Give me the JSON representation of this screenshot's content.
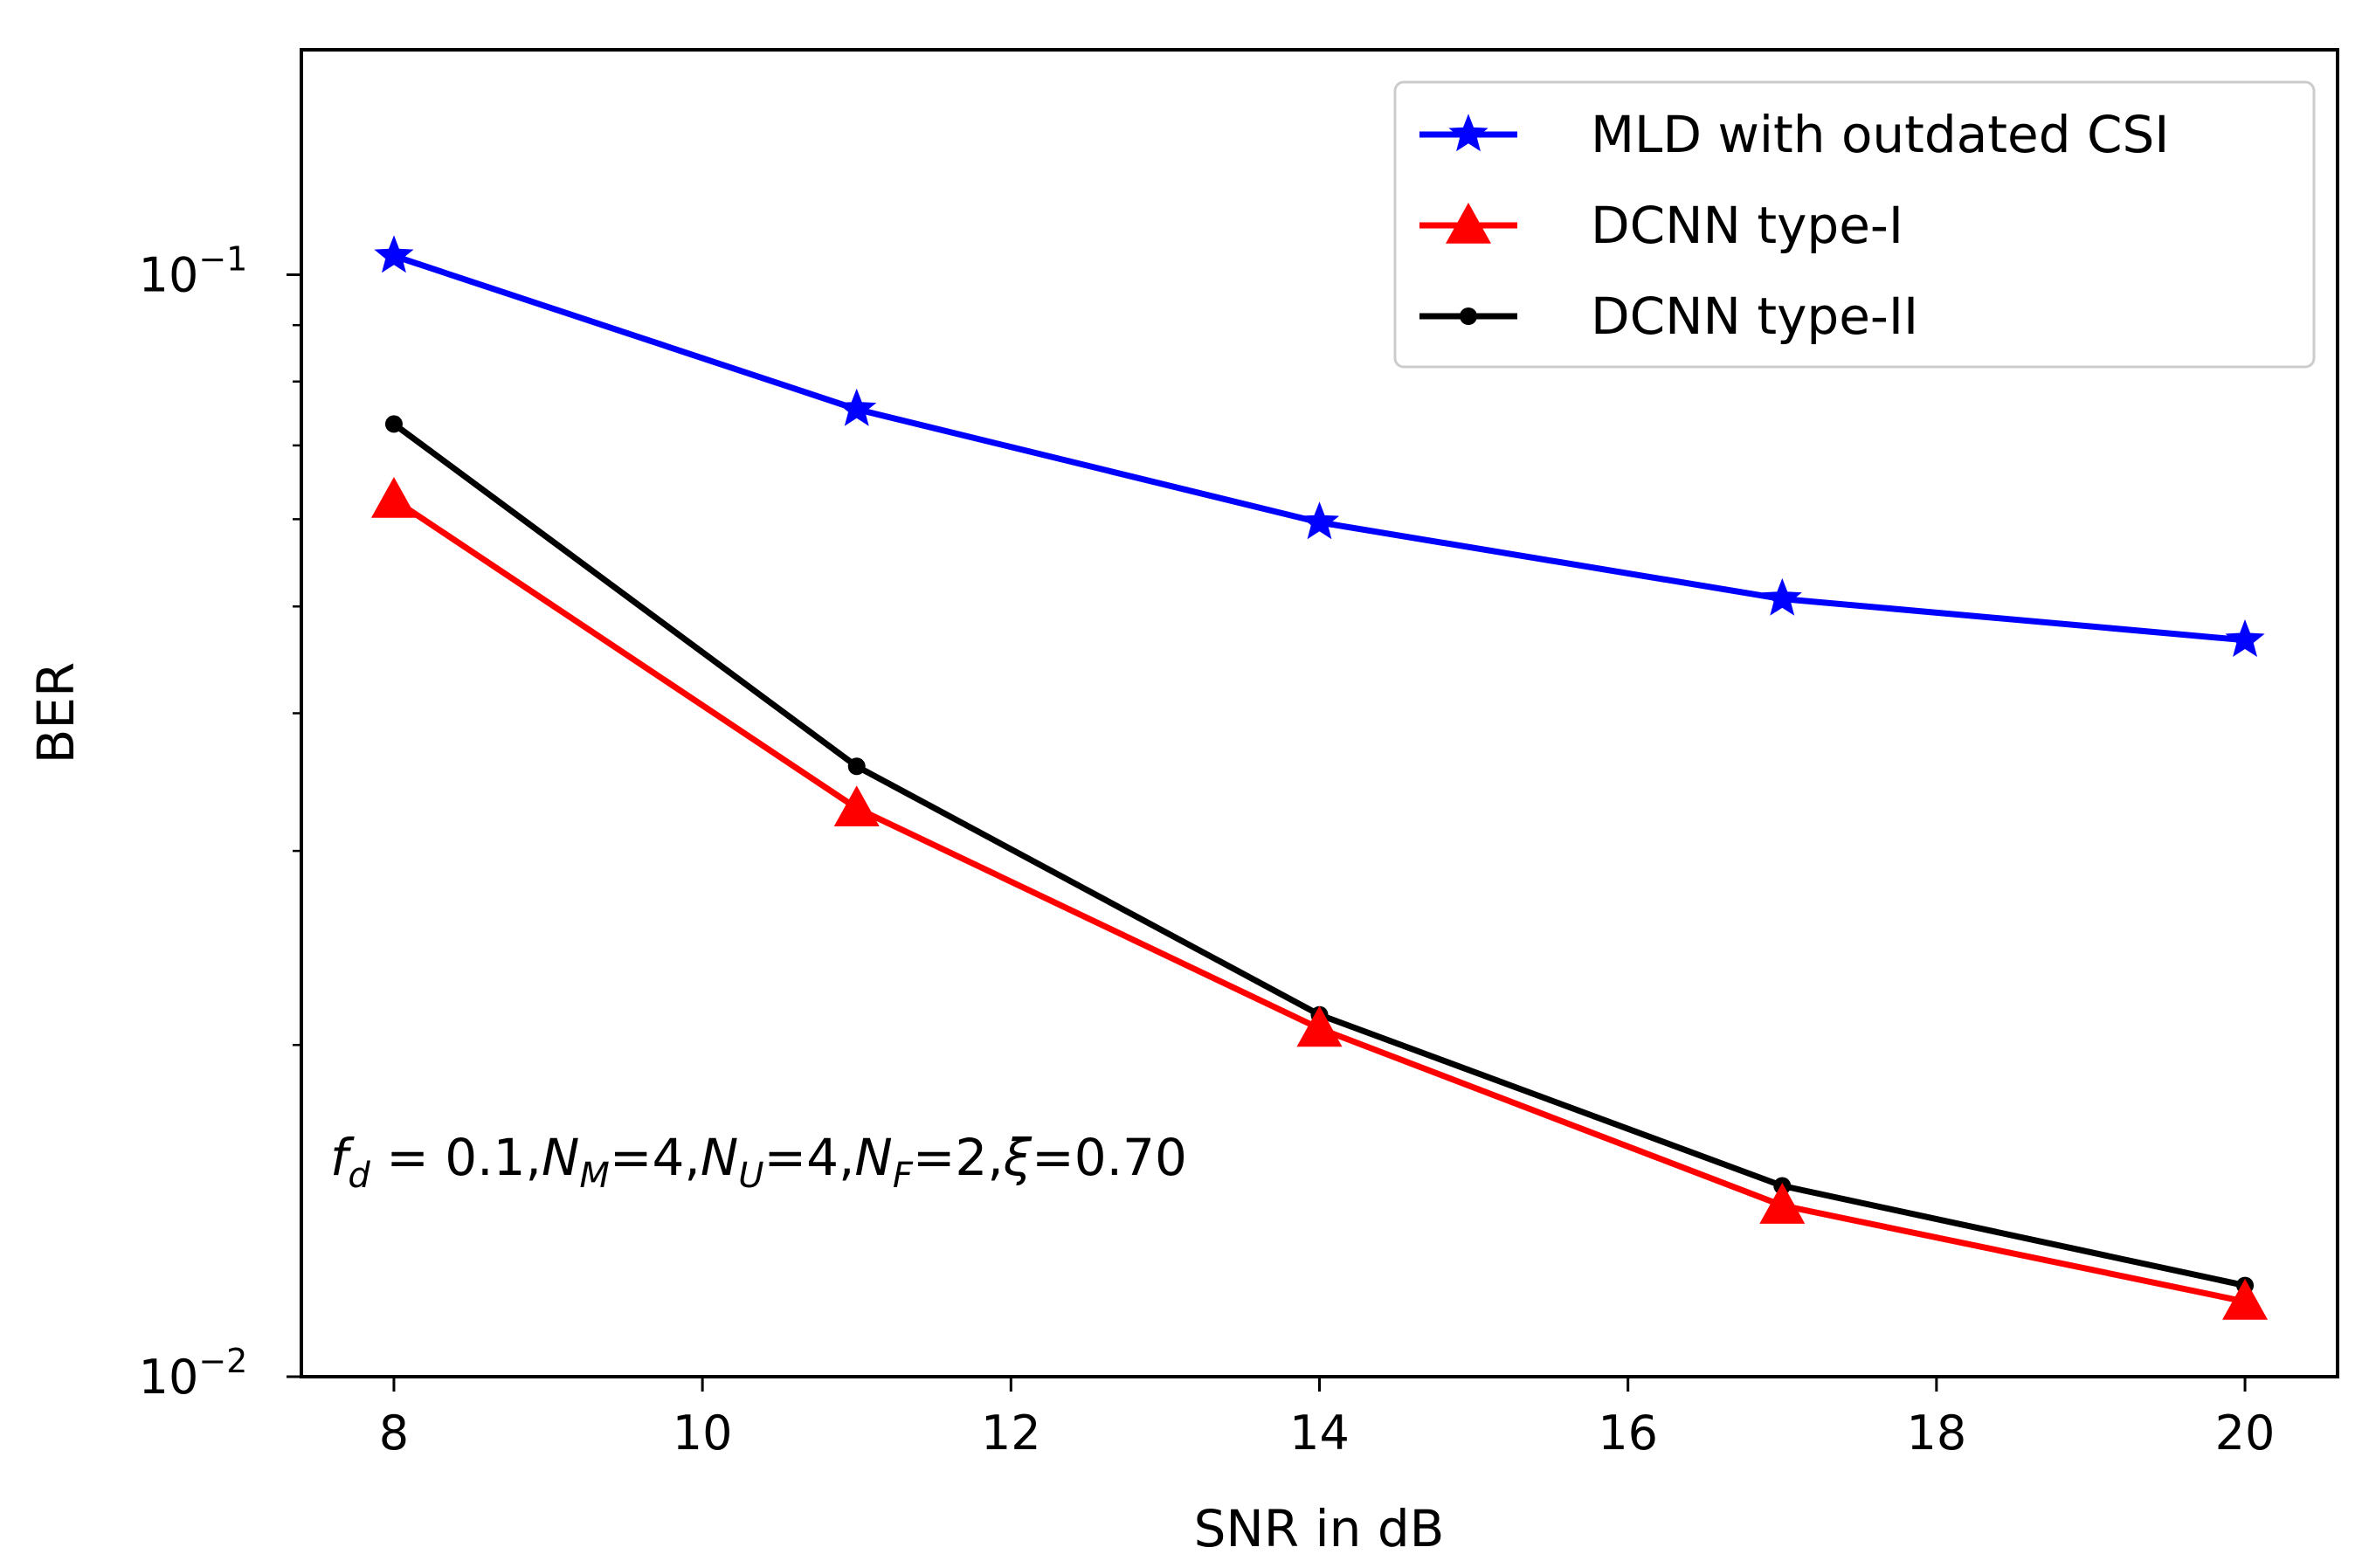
{
  "chart_data": {
    "type": "line",
    "title": "",
    "xlabel": "SNR in dB",
    "ylabel": "BER",
    "x_scale": "linear",
    "y_scale": "log",
    "xlim": [
      7.4,
      20.6
    ],
    "ylim": [
      0.01,
      0.16
    ],
    "x_ticks": [
      8,
      10,
      12,
      14,
      16,
      18,
      20
    ],
    "x_tick_labels": [
      "8",
      "10",
      "12",
      "14",
      "16",
      "18",
      "20"
    ],
    "y_major_ticks": [
      0.01,
      0.1
    ],
    "y_tick_labels": [
      {
        "base": "10",
        "exp": "−2"
      },
      {
        "base": "10",
        "exp": "−1"
      }
    ],
    "y_minor_ticks": [
      0.02,
      0.03,
      0.04,
      0.05,
      0.06,
      0.07,
      0.08,
      0.09
    ],
    "grid": false,
    "legend_position": "top-right",
    "x": [
      8,
      11,
      14,
      17,
      20
    ],
    "series": [
      {
        "name": "MLD with outdated CSI",
        "values": [
          0.104,
          0.0755,
          0.0596,
          0.0508,
          0.0466
        ],
        "color": "#0000ff",
        "marker": "star"
      },
      {
        "name": "DCNN type-I",
        "values": [
          0.0625,
          0.0328,
          0.0207,
          0.0143,
          0.0117
        ],
        "color": "#ff0000",
        "marker": "triangle"
      },
      {
        "name": "DCNN type-II",
        "values": [
          0.0732,
          0.0358,
          0.0213,
          0.0149,
          0.0121
        ],
        "color": "#000000",
        "marker": "circle"
      }
    ],
    "annotation": {
      "parts": [
        {
          "t": "f",
          "style": "italic"
        },
        {
          "t": "d",
          "style": "italic-sub"
        },
        {
          "t": " = 0.1,",
          "style": "normal"
        },
        {
          "t": "N",
          "style": "italic"
        },
        {
          "t": "M",
          "style": "italic-sub"
        },
        {
          "t": "=4,",
          "style": "normal"
        },
        {
          "t": "N",
          "style": "italic"
        },
        {
          "t": "U",
          "style": "italic-sub"
        },
        {
          "t": "=4,",
          "style": "normal"
        },
        {
          "t": "N",
          "style": "italic"
        },
        {
          "t": "F",
          "style": "italic-sub"
        },
        {
          "t": "=2,",
          "style": "normal"
        },
        {
          "t": "ξ",
          "style": "italic"
        },
        {
          "t": "=0.70",
          "style": "normal"
        }
      ]
    }
  }
}
